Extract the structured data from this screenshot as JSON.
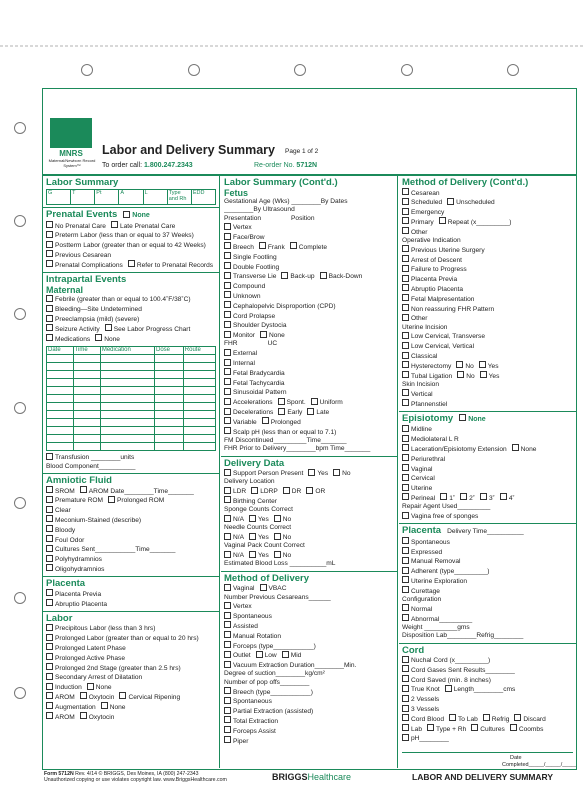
{
  "header": {
    "brand": "MNRS",
    "brand_sub": "Maternal/Newborn Record System™",
    "title": "Labor and Delivery Summary",
    "page": "Page 1 of 2",
    "order_label": "To order call:",
    "order_phone": "1.800.247.2343",
    "reorder_label": "Re-order No.",
    "reorder_no": "5712N"
  },
  "columns": [
    {
      "sections": [
        {
          "title": "Labor Summary",
          "fields": [
            "G",
            "T",
            "Pt",
            "A",
            "L",
            "Type and Rh",
            "EDD"
          ]
        },
        {
          "title": "Prenatal Events",
          "none": "None",
          "lines": [
            [
              "No Prenatal Care",
              "Late Prenatal Care"
            ],
            [
              "Preterm Labor (less than or equal to 37 Weeks)"
            ],
            [
              "Postterm Labor (greater than or equal to 42 Weeks)"
            ],
            [
              "Previous Cesarean"
            ],
            [
              "Prenatal Complications",
              "Refer to Prenatal Records"
            ]
          ]
        },
        {
          "title": "Intrapartal Events",
          "subtitle": "Maternal",
          "lines": [
            [
              "Febrile (greater than or equal to 100.4˚F/38˚C)"
            ],
            [
              "Bleeding—Site Undetermined"
            ],
            [
              "Preeclampsia (mild) (severe)"
            ],
            [
              "Seizure Activity",
              "See Labor Progress Chart"
            ],
            [
              "Medications",
              "None"
            ]
          ],
          "table": [
            "Date",
            "Time",
            "Medication",
            "Dose",
            "Route"
          ],
          "after": [
            [
              "Transfusion ________units"
            ],
            "Blood Component__________"
          ]
        },
        {
          "title": "Amniotic Fluid",
          "lines": [
            [
              "SROM",
              "AROM Date________Time_______"
            ],
            [
              "Premature ROM",
              "Prolonged ROM"
            ],
            [
              "Clear"
            ],
            [
              "Meconium-Stained (describe)"
            ],
            [
              "Bloody"
            ],
            [
              "Foul Odor"
            ],
            [
              "Cultures Sent___________Time_______"
            ],
            [
              "Polyhydramnios"
            ],
            [
              "Oligohydramnios"
            ]
          ]
        },
        {
          "title": "Placenta",
          "lines": [
            [
              "Placenta Previa"
            ],
            [
              "Abruptio Placenta"
            ]
          ]
        },
        {
          "title": "Labor",
          "lines": [
            [
              "Precipitous Labor (less than 3 hrs)"
            ],
            [
              "Prolonged Labor (greater than or equal to 20 hrs)"
            ],
            [
              "Prolonged Latent Phase"
            ],
            [
              "Prolonged Active Phase"
            ],
            [
              "Prolonged 2nd Stage (greater than 2.5 hrs)"
            ],
            [
              "Secondary Arrest of Dilatation"
            ],
            [
              "Induction",
              "None"
            ],
            [
              "AROM",
              "Oxytocin",
              "Cervical Ripening"
            ],
            [
              "Augmentation",
              "None"
            ],
            [
              "AROM",
              "Oxytocin"
            ]
          ]
        }
      ]
    },
    {
      "sections": [
        {
          "title": "Labor Summary (Cont'd.)",
          "subtitle": "Fetus",
          "lines": [
            "Gestational Age (Wks) ________By Dates",
            "________By Ultrasound",
            {
              "labels": [
                "Presentation",
                "Position"
              ]
            },
            [
              "Vertex"
            ],
            [
              "Face/Brow"
            ],
            [
              "Breech",
              "Frank",
              "Complete"
            ],
            [
              "Single Footling"
            ],
            [
              "Double Footling"
            ],
            [
              "Transverse Lie",
              "Back-up",
              "Back-Down"
            ],
            [
              "Compound"
            ],
            [
              "Unknown"
            ],
            [
              "Cephalopelvic Disproportion (CPD)"
            ],
            [
              "Cord Prolapse"
            ],
            [
              "Shoulder Dystocia"
            ],
            [
              "Monitor",
              "None"
            ],
            {
              "labels": [
                "FHR",
                "UC"
              ]
            },
            [
              "External"
            ],
            [
              "Internal"
            ],
            [
              "Fetal Bradycardia"
            ],
            [
              "Fetal Tachycardia"
            ],
            [
              "Sinusoidal Pattern"
            ],
            [
              "Accelerations",
              "Spont.",
              "Uniform"
            ],
            [
              "Decelerations",
              "Early",
              "Late"
            ],
            [
              "Variable",
              "Prolonged"
            ],
            [
              "Scalp pH (less than or equal to 7.1)"
            ],
            "FM Discontinued_________Time_______",
            "FHR Prior to Delivery________bpm Time_______"
          ]
        },
        {
          "title": "Delivery Data",
          "lines": [
            [
              "Support Person Present",
              "Yes",
              "No"
            ],
            "Delivery Location",
            [
              "LDR",
              "LDRP",
              "DR",
              "OR"
            ],
            [
              "Birthing Center"
            ],
            "Sponge Counts Correct",
            [
              "N/A",
              "Yes",
              "No"
            ],
            "Needle Counts Correct",
            [
              "N/A",
              "Yes",
              "No"
            ],
            "Vaginal Pack Count Correct",
            [
              "N/A",
              "Yes",
              "No"
            ],
            "Estimated Blood Loss __________mL"
          ]
        },
        {
          "title": "Method of Delivery",
          "lines": [
            [
              "Vaginal",
              "VBAC"
            ],
            "Number Previous Cesareans______",
            [
              "Vertex"
            ],
            [
              "Spontaneous"
            ],
            [
              "Assisted"
            ],
            [
              "Manual Rotation"
            ],
            [
              "Forceps (type___________)"
            ],
            [
              "Outlet",
              "Low",
              "Mid"
            ],
            [
              "Vacuum Extraction Duration________Min."
            ],
            "Degree of suction________kg/cm²",
            "Number of pop offs________",
            [
              "Breech (type___________)"
            ],
            [
              "Spontaneous"
            ],
            [
              "Partial Extraction (assisted)"
            ],
            [
              "Total Extraction"
            ],
            [
              "Forceps Assist"
            ],
            [
              "Piper"
            ]
          ]
        }
      ]
    },
    {
      "sections": [
        {
          "title": "Method of Delivery (Cont'd.)",
          "lines": [
            [
              "Cesarean"
            ],
            [
              "Scheduled",
              "Unscheduled"
            ],
            [
              "Emergency"
            ],
            [
              "Primary",
              "Repeat (x_________)"
            ],
            [
              "Other"
            ],
            "Operative Indication",
            [
              "Previous Uterine Surgery"
            ],
            [
              "Arrest of Descent"
            ],
            [
              "Failure to Progress"
            ],
            [
              "Placenta Previa"
            ],
            [
              "Abruptio Placenta"
            ],
            [
              "Fetal Malpresentation"
            ],
            [
              "Non reassuring FHR Pattern"
            ],
            [
              "Other"
            ],
            "Uterine Incision",
            [
              "Low Cervical, Transverse"
            ],
            [
              "Low Cervical, Vertical"
            ],
            [
              "Classical"
            ],
            [
              "Hysterectomy",
              "No",
              "Yes"
            ],
            [
              "Tubal Ligation",
              "No",
              "Yes"
            ],
            "Skin Incision",
            [
              "Vertical"
            ],
            [
              "Pfannenstiel"
            ]
          ]
        },
        {
          "title": "Episiotomy",
          "none": "None",
          "lines": [
            [
              "Midline"
            ],
            [
              "Mediolateral L R"
            ],
            [
              "Laceration/Episiotomy Extension",
              "None"
            ],
            [
              "Periurethral"
            ],
            [
              "Vaginal"
            ],
            [
              "Cervical"
            ],
            [
              "Uterine"
            ],
            [
              "Perineal",
              "1˚",
              "2˚",
              "3˚",
              "4˚"
            ],
            "Repair Agent Used_________",
            [
              "Vagina free of sponges"
            ]
          ]
        },
        {
          "title": "Placenta",
          "note": "Delivery Time__________",
          "lines": [
            [
              "Spontaneous"
            ],
            [
              "Expressed"
            ],
            [
              "Manual Removal"
            ],
            [
              "Adherent (type_________)"
            ],
            [
              "Uterine Exploration"
            ],
            [
              "Curettage"
            ],
            "Configuration",
            [
              "Normal"
            ],
            [
              "Abnormal_________"
            ],
            "Weight _________gms",
            "Disposition Lab________Refrig________"
          ]
        },
        {
          "title": "Cord",
          "lines": [
            [
              "Nuchal Cord (x_________)"
            ],
            [
              "Cord Gases Sent  Results________"
            ],
            [
              "Cord Saved (min. 8 inches)"
            ],
            [
              "True Knot",
              "Length________cms"
            ],
            [
              "2 Vessels"
            ],
            [
              "3 Vessels"
            ],
            [
              "Cord Blood",
              "To Lab",
              "Refrig",
              "Discard"
            ],
            [
              "Lab",
              "Type + Rh",
              "Cultures",
              "Coombs"
            ],
            [
              "pH________"
            ]
          ],
          "signature": {
            "date": "Date",
            "completed": "Completed_____/_____/_____",
            "label": "(Signature)"
          }
        }
      ]
    }
  ],
  "footer": {
    "form": "Form 5712N",
    "rev": "Rev. 4/14",
    "copyright": "© BRIGGS, Des Moines, IA (800) 247-2343",
    "notice": "Unauthorized copying or use violates copyright law. www.BriggsHealthcare.com",
    "brand": "BRIGGS",
    "brand2": "Healthcare",
    "title": "LABOR AND DELIVERY SUMMARY"
  }
}
